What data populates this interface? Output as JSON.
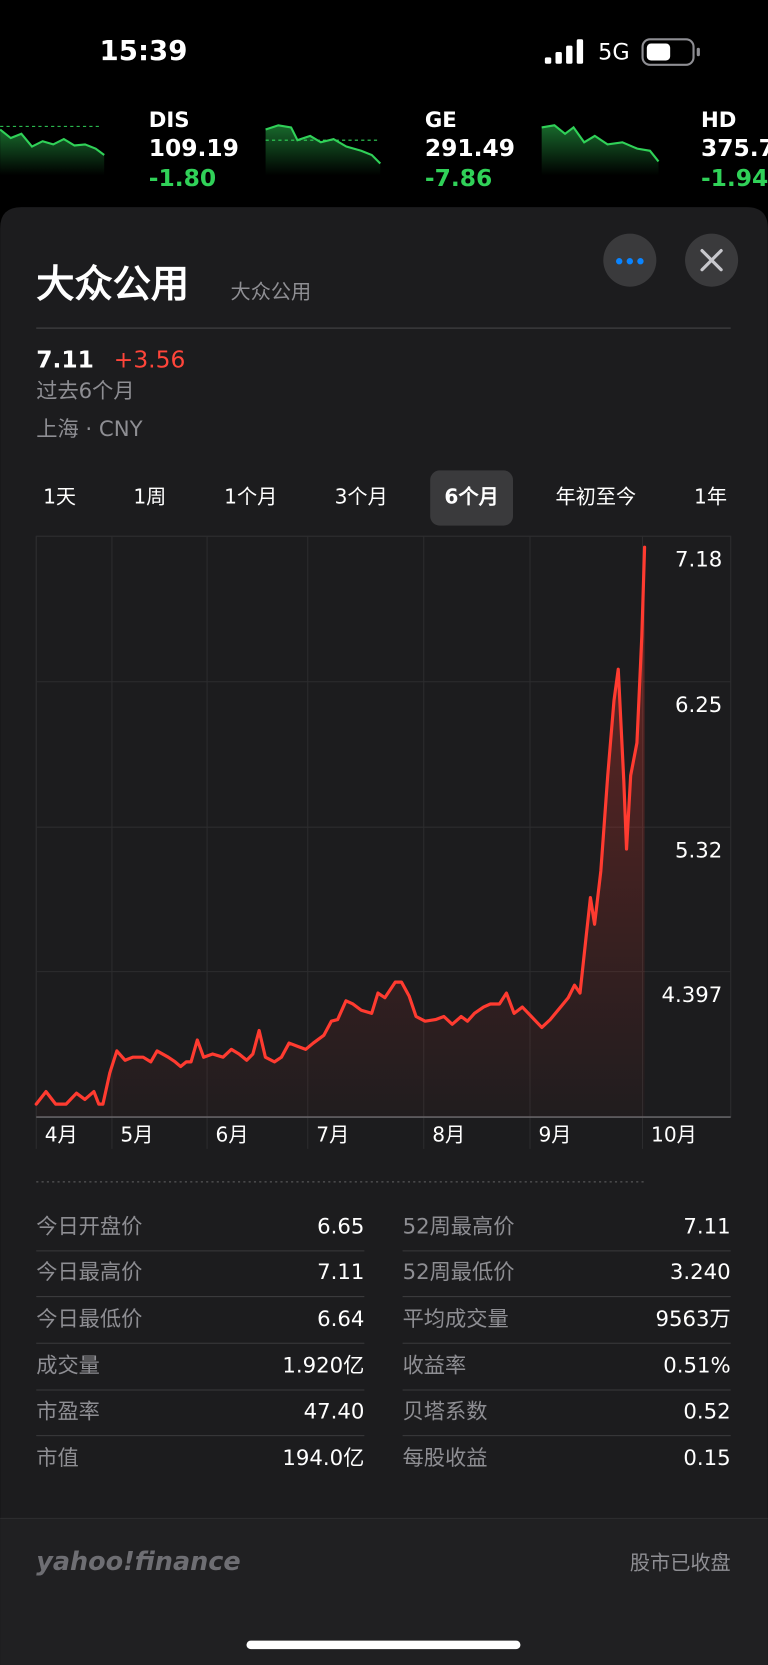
{
  "status_bar": {
    "time": "15:39",
    "network": "5G"
  },
  "ticker": [
    {
      "symbol": "DIS",
      "price": "109.19",
      "change": "-1.80"
    },
    {
      "symbol": "GE",
      "price": "291.49",
      "change": "-7.86"
    },
    {
      "symbol": "HD",
      "price": "375.7",
      "change": "-1.94"
    }
  ],
  "header": {
    "title": "大众公用",
    "subtitle": "大众公用",
    "price": "7.11",
    "change": "+3.56",
    "period": "过去6个月",
    "exchange": "上海 · CNY"
  },
  "range_tabs": {
    "items": [
      "1天",
      "1周",
      "1个月",
      "3个月",
      "6个月",
      "年初至今",
      "1年"
    ],
    "selected": 4
  },
  "chart": {
    "type": "line",
    "color": "#ff3b30",
    "x": [
      0,
      1.4,
      2.8,
      4.3,
      5.8,
      7.0,
      8.3,
      9.0,
      9.6,
      10.6,
      11.6,
      12.8,
      13.9,
      15.4,
      16.5,
      17.4,
      19.0,
      20.0,
      20.8,
      21.6,
      22.3,
      23.2,
      24.1,
      25.4,
      26.9,
      28.1,
      29.2,
      30.3,
      31.2,
      32.1,
      33.0,
      34.3,
      35.3,
      36.4,
      37.6,
      38.8,
      39.9,
      41.4,
      42.5,
      43.4,
      44.6,
      45.6,
      46.8,
      48.3,
      49.2,
      50.2,
      51.7,
      52.6,
      53.7,
      54.7,
      56.0,
      57.5,
      58.7,
      59.9,
      61.2,
      62.1,
      63.1,
      64.4,
      65.4,
      66.7,
      67.7,
      68.8,
      70.0,
      71.3,
      72.8,
      74.0,
      75.5,
      76.6,
      77.5,
      78.3,
      79.2,
      79.8,
      80.4,
      81.3,
      82.3,
      83.2,
      83.8,
      84.6,
      85.0,
      85.6,
      86.5,
      87.2,
      87.6
    ],
    "values": [
      3.55,
      3.63,
      3.55,
      3.55,
      3.62,
      3.58,
      3.63,
      3.55,
      3.55,
      3.75,
      3.89,
      3.83,
      3.85,
      3.85,
      3.82,
      3.89,
      3.85,
      3.82,
      3.79,
      3.82,
      3.82,
      3.96,
      3.85,
      3.87,
      3.85,
      3.9,
      3.87,
      3.83,
      3.87,
      4.02,
      3.85,
      3.82,
      3.85,
      3.94,
      3.92,
      3.9,
      3.94,
      3.99,
      4.08,
      4.09,
      4.21,
      4.19,
      4.15,
      4.13,
      4.26,
      4.23,
      4.33,
      4.33,
      4.24,
      4.11,
      4.08,
      4.09,
      4.11,
      4.06,
      4.11,
      4.08,
      4.13,
      4.17,
      4.19,
      4.19,
      4.26,
      4.13,
      4.17,
      4.11,
      4.04,
      4.09,
      4.17,
      4.23,
      4.31,
      4.26,
      4.63,
      4.87,
      4.7,
      5.04,
      5.65,
      6.13,
      6.33,
      5.62,
      5.18,
      5.65,
      5.86,
      6.54,
      7.11
    ],
    "xlim": [
      0,
      100
    ],
    "ylim": [
      3.467,
      7.18
    ],
    "yticks": [
      7.18,
      6.25,
      5.32,
      4.397
    ],
    "xticks": [
      {
        "value": 0,
        "label": "4月"
      },
      {
        "value": 10.9,
        "label": "5月"
      },
      {
        "value": 24.6,
        "label": "6月"
      },
      {
        "value": 39.1,
        "label": "7月"
      },
      {
        "value": 55.8,
        "label": "8月"
      },
      {
        "value": 71.1,
        "label": "9月"
      },
      {
        "value": 87.3,
        "label": "10月"
      }
    ],
    "grid": true
  },
  "stats": {
    "left": [
      [
        "今日开盘价",
        "6.65"
      ],
      [
        "今日最高价",
        "7.11"
      ],
      [
        "今日最低价",
        "6.64"
      ],
      [
        "成交量",
        "1.920亿"
      ],
      [
        "市盈率",
        "47.40"
      ],
      [
        "市值",
        "194.0亿"
      ]
    ],
    "right": [
      [
        "52周最高价",
        "7.11"
      ],
      [
        "52周最低价",
        "3.240"
      ],
      [
        "平均成交量",
        "9563万"
      ],
      [
        "收益率",
        "0.51%"
      ],
      [
        "贝塔系数",
        "0.52"
      ],
      [
        "每股收益",
        "0.15"
      ]
    ]
  },
  "footer": {
    "brand": "yahoo!finance",
    "market_status": "股市已收盘"
  }
}
